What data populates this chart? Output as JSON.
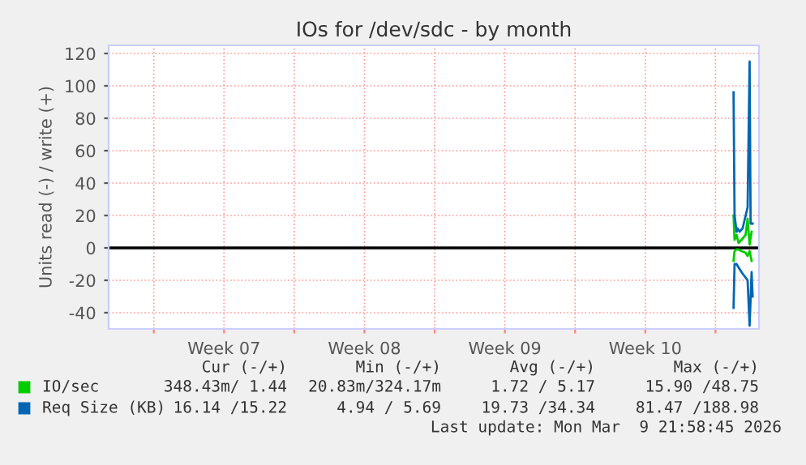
{
  "chart_data": {
    "type": "line",
    "title": "IOs for /dev/sdc - by month",
    "ylabel": "Units read (-) / write (+)",
    "xlim": [
      "2026-02-05T12:00",
      "2026-03-09T22:00"
    ],
    "ylim": [
      -50,
      125
    ],
    "xticks": [
      {
        "value": "2026-02-07T18:00",
        "label": null
      },
      {
        "value": "2026-02-11T06:00",
        "label": "Week 07"
      },
      {
        "value": "2026-02-14T18:00",
        "label": null
      },
      {
        "value": "2026-02-18T06:00",
        "label": "Week 08"
      },
      {
        "value": "2026-02-21T18:00",
        "label": null
      },
      {
        "value": "2026-02-25T06:00",
        "label": "Week 09"
      },
      {
        "value": "2026-02-28T18:00",
        "label": null
      },
      {
        "value": "2026-03-04T06:00",
        "label": "Week 10"
      },
      {
        "value": "2026-03-07T18:00",
        "label": null
      }
    ],
    "yticks": [
      -40,
      -20,
      0,
      20,
      40,
      60,
      80,
      100,
      120
    ],
    "grid": true,
    "legend": "bottom",
    "line_style": "solid",
    "marker": "none",
    "ref_lines": [
      {
        "axis": "y",
        "value": 0,
        "label": null,
        "color": "#000000"
      }
    ],
    "series": [
      {
        "color": "#00cc00",
        "x": [
          "2026-03-08T15:36",
          "2026-03-08T16:48",
          "2026-03-08T19:12",
          "2026-03-08T21:36",
          "2026-03-09T01:12",
          "2026-03-09T06:00",
          "2026-03-09T08:24",
          "2026-03-09T10:48",
          "2026-03-09T13:12"
        ],
        "values": [
          -8,
          -2,
          -1,
          -1,
          -2,
          -3,
          -5,
          -2,
          -8
        ]
      },
      {
        "name": "IO/sec",
        "color": "#00cc00",
        "x": [
          "2026-03-08T15:36",
          "2026-03-08T16:48",
          "2026-03-08T19:12",
          "2026-03-08T21:36",
          "2026-03-09T01:12",
          "2026-03-09T06:00",
          "2026-03-09T08:24",
          "2026-03-09T10:48",
          "2026-03-09T13:12"
        ],
        "values": [
          20,
          5,
          8,
          3,
          5,
          8,
          18,
          2,
          10
        ]
      },
      {
        "color": "#0066b3",
        "x": [
          "2026-03-08T15:36",
          "2026-03-08T16:48",
          "2026-03-08T19:12",
          "2026-03-08T21:36",
          "2026-03-09T01:12",
          "2026-03-09T08:24",
          "2026-03-09T10:48",
          "2026-03-09T13:12",
          "2026-03-09T14:24"
        ],
        "values": [
          -37,
          -10,
          -10,
          -12,
          -15,
          -20,
          -48,
          -15,
          -30
        ]
      },
      {
        "name": "Req Size (KB)",
        "color": "#0066b3",
        "x": [
          "2026-03-08T15:36",
          "2026-03-08T16:48",
          "2026-03-08T19:12",
          "2026-03-08T20:24",
          "2026-03-08T22:48",
          "2026-03-09T02:24",
          "2026-03-09T08:24",
          "2026-03-09T10:48",
          "2026-03-09T12:00",
          "2026-03-09T14:24"
        ],
        "values": [
          96,
          20,
          10,
          12,
          10,
          12,
          25,
          115,
          15,
          15
        ]
      }
    ],
    "annotations": [
      "Cur (-/+)",
      "Min (-/+)",
      "Avg (-/+)",
      "Max (-/+)",
      "348.43m/ 1.44",
      "20.83m/324.17m",
      "1.72 / 5.17",
      "15.90 /48.75",
      "16.14 /15.22",
      "4.94 / 5.69",
      "19.73 /34.34",
      "81.47 /188.98",
      "Last update: Mon Mar  9 21:58:45 2026"
    ]
  }
}
